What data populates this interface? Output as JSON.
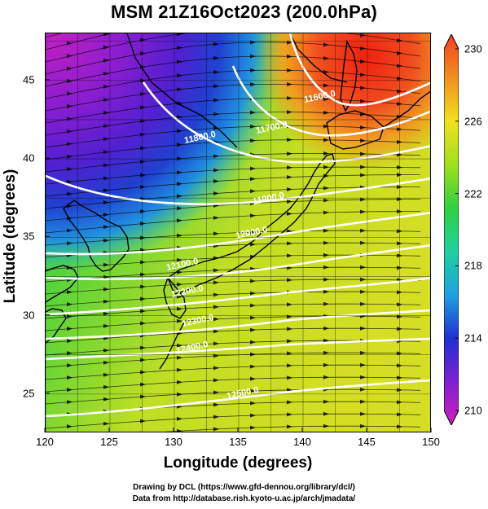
{
  "title": "MSM 21Z16Oct2023 (200.0hPa)",
  "map": {
    "lon_range": [
      120,
      150
    ],
    "lat_range": [
      22.5,
      48
    ],
    "x_ticks": [
      "120",
      "125",
      "130",
      "135",
      "140",
      "145",
      "150"
    ],
    "y_ticks": [
      "25",
      "30",
      "35",
      "40",
      "45"
    ],
    "xlabel": "Longitude (degrees)",
    "ylabel": "Latitude  (degrees)",
    "grid": true,
    "field": "temperature shading with height contours and streamlines"
  },
  "colorbar": {
    "min": 210,
    "max": 230,
    "ticks": [
      "230",
      "226",
      "222",
      "218",
      "214",
      "210"
    ],
    "colors": [
      "#d020c0",
      "#8020d0",
      "#2030d0",
      "#20a0e0",
      "#20d0a0",
      "#30d040",
      "#a0e020",
      "#f0e020",
      "#f09020",
      "#f04020"
    ]
  },
  "contour_labels": [
    {
      "text": "11600.0",
      "lon": 141.5,
      "lat": 43.8
    },
    {
      "text": "11700.0",
      "lon": 137.8,
      "lat": 41.8
    },
    {
      "text": "11800.0",
      "lon": 132.2,
      "lat": 41.2
    },
    {
      "text": "11900.0",
      "lon": 137.5,
      "lat": 37.3
    },
    {
      "text": "12000.0",
      "lon": 136.2,
      "lat": 35.1
    },
    {
      "text": "12100.0",
      "lon": 130.8,
      "lat": 33.1
    },
    {
      "text": "12200.0",
      "lon": 131.2,
      "lat": 31.4
    },
    {
      "text": "12300.0",
      "lon": 132.0,
      "lat": 29.5
    },
    {
      "text": "12400.0",
      "lon": 131.6,
      "lat": 27.8
    },
    {
      "text": "12500.0",
      "lon": 135.5,
      "lat": 24.9
    }
  ],
  "credits": {
    "line1": "Drawing by DCL (https://www.gfd-dennou.org/library/dcl/)",
    "line2": "Data from http://database.rish.kyoto-u.ac.jp/arch/jmadata/"
  }
}
